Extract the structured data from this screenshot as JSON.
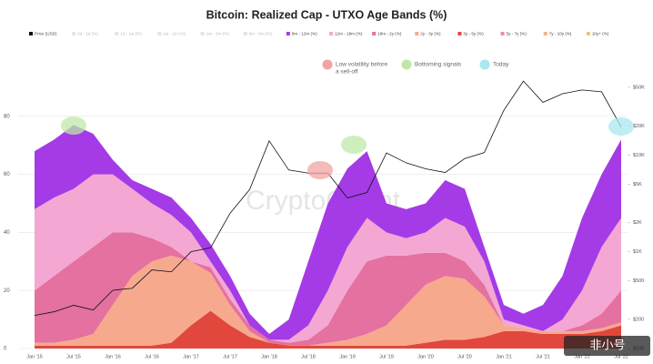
{
  "chart_data": {
    "type": "stacked-area",
    "title": "Bitcoin: Realized Cap - UTXO Age Bands (%)",
    "watermark": "CryptoQuant",
    "logo_text": "非小号",
    "categories": [
      "Jan '15",
      null,
      "Jul '15",
      null,
      "Jan '16",
      null,
      "Jul '16",
      null,
      "Jan '17",
      null,
      "Jul '17",
      null,
      "Jan '18",
      null,
      "Jul '18",
      null,
      "Jan '19",
      null,
      "Jul '19",
      null,
      "Jan '20",
      null,
      "Jul '20",
      null,
      "Jan '21",
      null,
      "Jul '21",
      null,
      "Jan '22",
      null,
      "Jul '22"
    ],
    "ylim": [
      0,
      100
    ],
    "yticks": [
      0,
      20,
      40,
      60,
      80
    ],
    "y2lim": [
      100,
      100000
    ],
    "y2log": true,
    "y2ticks": [
      {
        "value": 100,
        "label": "$100"
      },
      {
        "value": 200,
        "label": "$200"
      },
      {
        "value": 500,
        "label": "$500"
      },
      {
        "value": 1000,
        "label": "$1K"
      },
      {
        "value": 2000,
        "label": "$2K"
      },
      {
        "value": 5000,
        "label": "$5K"
      },
      {
        "value": 10000,
        "label": "$10K"
      },
      {
        "value": 20000,
        "label": "$20K"
      },
      {
        "value": 50000,
        "label": "$50K"
      }
    ],
    "grid": true,
    "series": [
      {
        "name": "Price (USD)",
        "color": "#111111",
        "axis": "y2",
        "values": [
          220,
          240,
          280,
          250,
          400,
          420,
          650,
          620,
          1000,
          1100,
          2500,
          4400,
          14000,
          7000,
          6500,
          6500,
          3600,
          4100,
          10500,
          8300,
          7200,
          6600,
          9200,
          10600,
          29000,
          58000,
          35000,
          43000,
          47000,
          45000,
          19500
        ]
      },
      {
        "name": "3y - 5y (%)",
        "color": "#e2473d",
        "values": [
          1,
          1,
          1,
          1,
          1,
          1,
          1,
          2,
          8,
          13,
          8,
          4,
          2,
          1,
          1,
          1,
          1,
          1,
          1,
          1,
          2,
          3,
          3,
          4,
          6,
          6,
          5,
          5,
          5,
          6,
          8
        ]
      },
      {
        "name": "2y - 3y (%)",
        "color": "#f7a98e",
        "values": [
          1,
          1,
          2,
          4,
          14,
          24,
          29,
          30,
          22,
          13,
          7,
          2,
          0,
          0,
          0,
          1,
          2,
          4,
          7,
          14,
          20,
          22,
          21,
          14,
          2,
          1,
          1,
          1,
          1,
          1,
          1
        ]
      },
      {
        "name": "18m - 2y (%)",
        "color": "#e4719f",
        "values": [
          18,
          23,
          27,
          30,
          25,
          15,
          8,
          3,
          0,
          2,
          2,
          2,
          1,
          1,
          2,
          6,
          17,
          25,
          24,
          17,
          11,
          8,
          6,
          4,
          0,
          0,
          0,
          0,
          2,
          5,
          11
        ]
      },
      {
        "name": "12m - 18m (%)",
        "color": "#f3a7d2",
        "values": [
          28,
          27,
          25,
          25,
          20,
          15,
          12,
          11,
          10,
          2,
          3,
          0,
          0,
          1,
          5,
          12,
          15,
          15,
          8,
          6,
          7,
          12,
          12,
          8,
          2,
          1,
          0,
          4,
          12,
          23,
          25
        ]
      },
      {
        "name": "6m - 12m (%)",
        "color": "#a43be6",
        "values": [
          20,
          20,
          22,
          14,
          5,
          3,
          5,
          6,
          5,
          6,
          5,
          4,
          2,
          7,
          22,
          30,
          27,
          23,
          10,
          10,
          10,
          13,
          13,
          5,
          5,
          4,
          9,
          15,
          25,
          25,
          27
        ]
      }
    ],
    "hidden_series": [
      {
        "name": "0d - 1d (%)",
        "color": "#c9c9c9"
      },
      {
        "name": "1d - 1w (%)",
        "color": "#c9c9c9"
      },
      {
        "name": "1w - 1m (%)",
        "color": "#c9c9c9"
      },
      {
        "name": "1m - 3m (%)",
        "color": "#c9c9c9"
      },
      {
        "name": "3m - 6m (%)",
        "color": "#c9c9c9"
      }
    ],
    "other_series": [
      {
        "name": "5y - 7y (%)",
        "color": "#f08aa8"
      },
      {
        "name": "7y - 10y (%)",
        "color": "#f6b08f"
      },
      {
        "name": "10y+ (%)",
        "color": "#f2c36b"
      }
    ],
    "annotations": [
      {
        "lines": [
          "Low volatility before",
          "a sell-off"
        ],
        "color": "#f2a3a3"
      },
      {
        "lines": [
          "Bottoming signals"
        ],
        "color": "#bfe8a8"
      },
      {
        "lines": [
          "Today"
        ],
        "color": "#a8e8f0"
      }
    ]
  }
}
